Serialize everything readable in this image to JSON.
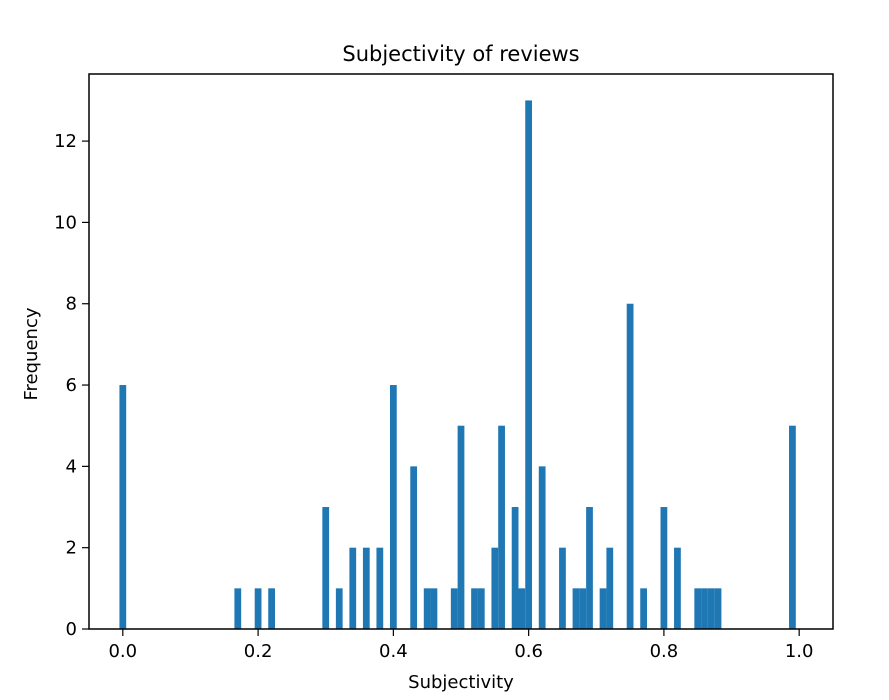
{
  "chart_data": {
    "type": "bar",
    "title": "Subjectivity of reviews",
    "xlabel": "Subjectivity",
    "ylabel": "Frequency",
    "xlim": [
      -0.05,
      1.05
    ],
    "ylim": [
      0,
      13.65
    ],
    "xticks": [
      0.0,
      0.2,
      0.4,
      0.6,
      0.8,
      1.0
    ],
    "xtick_labels": [
      "0.0",
      "0.2",
      "0.4",
      "0.6",
      "0.8",
      "1.0"
    ],
    "yticks": [
      0,
      2,
      4,
      6,
      8,
      10,
      12
    ],
    "ytick_labels": [
      "0",
      "2",
      "4",
      "6",
      "8",
      "10",
      "12"
    ],
    "grid": false,
    "color": "#1f77b4",
    "bin_width": 0.01,
    "bins": [
      {
        "x": 0.0,
        "count": 6
      },
      {
        "x": 0.17,
        "count": 1
      },
      {
        "x": 0.2,
        "count": 1
      },
      {
        "x": 0.22,
        "count": 1
      },
      {
        "x": 0.3,
        "count": 3
      },
      {
        "x": 0.32,
        "count": 1
      },
      {
        "x": 0.34,
        "count": 2
      },
      {
        "x": 0.36,
        "count": 2
      },
      {
        "x": 0.38,
        "count": 2
      },
      {
        "x": 0.4,
        "count": 6
      },
      {
        "x": 0.43,
        "count": 4
      },
      {
        "x": 0.45,
        "count": 1
      },
      {
        "x": 0.46,
        "count": 1
      },
      {
        "x": 0.49,
        "count": 1
      },
      {
        "x": 0.5,
        "count": 5
      },
      {
        "x": 0.52,
        "count": 1
      },
      {
        "x": 0.53,
        "count": 1
      },
      {
        "x": 0.55,
        "count": 2
      },
      {
        "x": 0.56,
        "count": 5
      },
      {
        "x": 0.58,
        "count": 3
      },
      {
        "x": 0.59,
        "count": 1
      },
      {
        "x": 0.6,
        "count": 13
      },
      {
        "x": 0.62,
        "count": 4
      },
      {
        "x": 0.65,
        "count": 2
      },
      {
        "x": 0.67,
        "count": 1
      },
      {
        "x": 0.68,
        "count": 1
      },
      {
        "x": 0.69,
        "count": 3
      },
      {
        "x": 0.71,
        "count": 1
      },
      {
        "x": 0.72,
        "count": 2
      },
      {
        "x": 0.75,
        "count": 8
      },
      {
        "x": 0.77,
        "count": 1
      },
      {
        "x": 0.8,
        "count": 3
      },
      {
        "x": 0.82,
        "count": 2
      },
      {
        "x": 0.85,
        "count": 1
      },
      {
        "x": 0.86,
        "count": 1
      },
      {
        "x": 0.87,
        "count": 1
      },
      {
        "x": 0.88,
        "count": 1
      },
      {
        "x": 0.99,
        "count": 5
      }
    ]
  }
}
